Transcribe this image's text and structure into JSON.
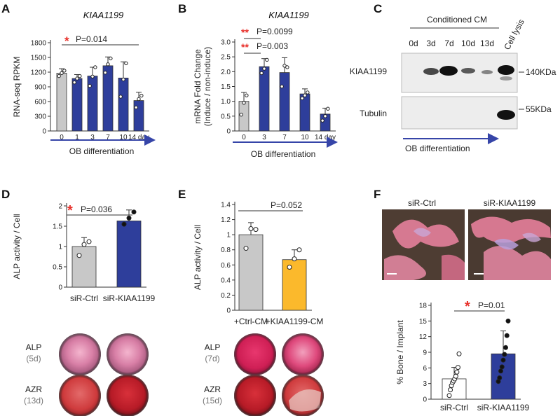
{
  "panel_letters": [
    "A",
    "B",
    "C",
    "D",
    "E",
    "F"
  ],
  "colors": {
    "blue": "#2e3e9b",
    "gray": "#c8c8c8",
    "orange": "#fbb92c",
    "white": "#ffffff",
    "star": "#e8302a",
    "arrow": "#3645a8"
  },
  "chart_data": [
    {
      "id": "A",
      "type": "bar",
      "title": "KIAA1199",
      "ylabel": "RNA-seq RPKM",
      "categories": [
        "0",
        "1",
        "3",
        "7",
        "10",
        "14 day"
      ],
      "values": [
        1180,
        1070,
        1120,
        1330,
        1080,
        620
      ],
      "errors": [
        90,
        80,
        180,
        180,
        330,
        170
      ],
      "points": [
        [
          1120,
          1180,
          1230
        ],
        [
          990,
          1070,
          1120
        ],
        [
          920,
          1110,
          1300
        ],
        [
          1190,
          1360,
          1480
        ],
        [
          700,
          1050,
          1380
        ],
        [
          480,
          650,
          720
        ]
      ],
      "bar_colors": [
        "gray",
        "blue",
        "blue",
        "blue",
        "blue",
        "blue"
      ],
      "ylim": [
        0,
        1800
      ],
      "yticks": [
        "0",
        "300",
        "600",
        "900",
        "1200",
        "1500",
        "1800"
      ],
      "significance": [
        {
          "stars": "*",
          "text": "P=0.014"
        }
      ],
      "xaxis_caption": "OB differentiation"
    },
    {
      "id": "B",
      "type": "bar",
      "title": "KIAA1199",
      "ylabel": "mRNA Fold Change",
      "ylabel2": "(Induce / non-induce)",
      "categories": [
        "0",
        "3",
        "7",
        "10",
        "14 day"
      ],
      "values": [
        1.0,
        2.17,
        1.97,
        1.25,
        0.57
      ],
      "errors": [
        0.3,
        0.27,
        0.5,
        0.17,
        0.2
      ],
      "points": [
        [
          0.55,
          0.95,
          1.2
        ],
        [
          1.95,
          2.1,
          2.4
        ],
        [
          1.5,
          2.2,
          2.15
        ],
        [
          1.1,
          1.2,
          1.3
        ],
        [
          0.35,
          0.5,
          0.75
        ]
      ],
      "bar_colors": [
        "gray",
        "blue",
        "blue",
        "blue",
        "blue"
      ],
      "ylim": [
        0,
        3.0
      ],
      "yticks": [
        "0",
        "0.5",
        "1.0",
        "1.5",
        "2.0",
        "2.5",
        "3.0"
      ],
      "significance": [
        {
          "stars": "**",
          "text": "P=0.0099"
        },
        {
          "stars": "**",
          "text": "P=0.003"
        }
      ],
      "xaxis_caption": "OB differentiation"
    },
    {
      "id": "D",
      "type": "bar",
      "ylabel": "ALP activity / Cell",
      "categories": [
        "siR-Ctrl",
        "siR-KIAA1199"
      ],
      "values": [
        1.0,
        1.63
      ],
      "errors": [
        0.22,
        0.27
      ],
      "points": [
        [
          0.78,
          1.05,
          1.12
        ],
        [
          1.55,
          1.7,
          1.85
        ]
      ],
      "point_styles": [
        "open",
        "filled"
      ],
      "bar_colors": [
        "gray",
        "blue"
      ],
      "ylim": [
        0,
        2.0
      ],
      "yticks": [
        "0",
        "0.5",
        "1",
        "1.5",
        "2"
      ],
      "significance": [
        {
          "stars": "*",
          "text": "P=0.036"
        }
      ]
    },
    {
      "id": "E",
      "type": "bar",
      "ylabel": "ALP activity / Cell",
      "categories": [
        "+Ctrl-CM",
        "+KIAA1199-CM"
      ],
      "values": [
        1.0,
        0.67
      ],
      "errors": [
        0.16,
        0.13
      ],
      "points": [
        [
          0.82,
          1.08,
          1.07
        ],
        [
          0.57,
          0.68,
          0.8
        ]
      ],
      "point_styles": [
        "open",
        "open"
      ],
      "bar_colors": [
        "gray",
        "orange"
      ],
      "ylim": [
        0,
        1.4
      ],
      "yticks": [
        "0",
        "0.2",
        "0.4",
        "0.6",
        "0.8",
        "1",
        "1.2",
        "1.4"
      ],
      "significance": [
        {
          "stars": "",
          "text": "P=0.052"
        }
      ]
    },
    {
      "id": "F",
      "type": "bar",
      "ylabel": "% Bone / Implant",
      "categories": [
        "siR-Ctrl",
        "siR-KIAA1199"
      ],
      "values": [
        3.9,
        8.7
      ],
      "errors": [
        2.2,
        4.4
      ],
      "points": [
        [
          0.7,
          1.8,
          2.6,
          3.2,
          3.5,
          3.9,
          4.4,
          5.2,
          6.1,
          8.7
        ],
        [
          3.4,
          4.1,
          5.4,
          6.2,
          7.5,
          8.6,
          9.9,
          12.2,
          15.0
        ]
      ],
      "point_styles": [
        "open",
        "filled"
      ],
      "bar_colors": [
        "white",
        "blue"
      ],
      "ylim": [
        0,
        18
      ],
      "yticks": [
        "0",
        "3",
        "6",
        "9",
        "12",
        "15",
        "18"
      ],
      "significance": [
        {
          "stars": "*",
          "text": "P=0.01"
        }
      ]
    }
  ],
  "panel_c": {
    "group_label": "Conditioned CM",
    "lane_labels": [
      "0d",
      "3d",
      "7d",
      "10d",
      "13d"
    ],
    "lysis_label": "Cell lysis",
    "blots": [
      {
        "label": "KIAA1199",
        "marker": "140KDa"
      },
      {
        "label": "Tubulin",
        "marker": "55KDa"
      }
    ],
    "xaxis_caption": "OB differentiation"
  },
  "panel_d_stains": {
    "rows": [
      {
        "name": "ALP",
        "time": "(5d)"
      },
      {
        "name": "AZR",
        "time": "(13d)"
      }
    ]
  },
  "panel_e_stains": {
    "rows": [
      {
        "name": "ALP",
        "time": "(7d)"
      },
      {
        "name": "AZR",
        "time": "(15d)"
      }
    ]
  },
  "panel_f_histology": {
    "labels": [
      "siR-Ctrl",
      "siR-KIAA1199"
    ]
  }
}
